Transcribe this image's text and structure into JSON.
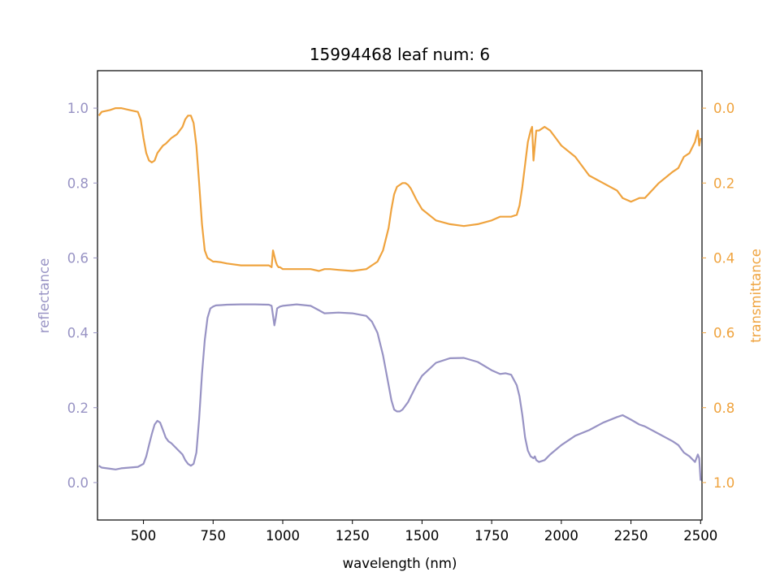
{
  "chart_data": {
    "type": "line",
    "title": "15994468 leaf num: 6",
    "xlabel": "wavelength (nm)",
    "ylabel": "reflectance",
    "y2label": "transmittance",
    "xlim": [
      335,
      2505
    ],
    "ylim": [
      -0.1,
      1.1
    ],
    "y2lim": [
      1.1,
      -0.1
    ],
    "y2_inverted": true,
    "grid": false,
    "x_ticks": [
      "500",
      "750",
      "1000",
      "1250",
      "1500",
      "1750",
      "2000",
      "2250",
      "2500"
    ],
    "y_ticks": [
      "0.0",
      "0.2",
      "0.4",
      "0.6",
      "0.8",
      "1.0"
    ],
    "y2_ticks": [
      "0.0",
      "0.2",
      "0.4",
      "0.6",
      "0.8",
      "1.0"
    ],
    "colors": {
      "reflectance": "#9893c4",
      "transmittance": "#efa33e",
      "axes": "#000000"
    },
    "series": [
      {
        "name": "reflectance",
        "axis": "left",
        "x": [
          340,
          350,
          380,
          400,
          420,
          450,
          480,
          500,
          510,
          520,
          530,
          540,
          550,
          560,
          570,
          580,
          590,
          600,
          620,
          640,
          650,
          660,
          670,
          680,
          690,
          700,
          710,
          720,
          730,
          740,
          750,
          760,
          780,
          800,
          850,
          900,
          950,
          960,
          970,
          975,
          980,
          990,
          1000,
          1050,
          1100,
          1130,
          1150,
          1200,
          1250,
          1300,
          1320,
          1340,
          1360,
          1380,
          1390,
          1400,
          1410,
          1420,
          1430,
          1440,
          1450,
          1460,
          1480,
          1500,
          1550,
          1600,
          1650,
          1700,
          1750,
          1780,
          1800,
          1820,
          1840,
          1850,
          1860,
          1870,
          1880,
          1890,
          1900,
          1905,
          1910,
          1920,
          1940,
          1960,
          2000,
          2050,
          2100,
          2150,
          2200,
          2220,
          2250,
          2280,
          2300,
          2350,
          2400,
          2420,
          2440,
          2460,
          2480,
          2490,
          2495,
          2500
        ],
        "y": [
          0.045,
          0.04,
          0.037,
          0.035,
          0.038,
          0.04,
          0.042,
          0.05,
          0.07,
          0.1,
          0.13,
          0.155,
          0.165,
          0.16,
          0.14,
          0.12,
          0.11,
          0.105,
          0.09,
          0.075,
          0.06,
          0.05,
          0.045,
          0.05,
          0.08,
          0.17,
          0.29,
          0.38,
          0.44,
          0.465,
          0.47,
          0.473,
          0.474,
          0.475,
          0.476,
          0.476,
          0.475,
          0.472,
          0.42,
          0.44,
          0.465,
          0.47,
          0.472,
          0.476,
          0.472,
          0.46,
          0.452,
          0.454,
          0.452,
          0.445,
          0.43,
          0.4,
          0.34,
          0.26,
          0.22,
          0.195,
          0.19,
          0.19,
          0.195,
          0.205,
          0.215,
          0.23,
          0.26,
          0.285,
          0.32,
          0.332,
          0.333,
          0.322,
          0.3,
          0.29,
          0.292,
          0.288,
          0.26,
          0.23,
          0.18,
          0.12,
          0.085,
          0.07,
          0.065,
          0.07,
          0.06,
          0.055,
          0.06,
          0.075,
          0.1,
          0.125,
          0.14,
          0.16,
          0.175,
          0.18,
          0.168,
          0.155,
          0.15,
          0.13,
          0.11,
          0.1,
          0.08,
          0.07,
          0.055,
          0.075,
          0.065,
          0.005
        ]
      },
      {
        "name": "transmittance",
        "axis": "right",
        "x": [
          340,
          350,
          380,
          400,
          420,
          450,
          480,
          490,
          500,
          510,
          520,
          530,
          540,
          550,
          560,
          570,
          580,
          600,
          620,
          640,
          650,
          660,
          670,
          680,
          690,
          700,
          710,
          720,
          730,
          740,
          750,
          760,
          780,
          800,
          850,
          900,
          950,
          960,
          965,
          970,
          975,
          980,
          985,
          990,
          1000,
          1050,
          1100,
          1130,
          1150,
          1170,
          1200,
          1250,
          1300,
          1320,
          1340,
          1360,
          1380,
          1390,
          1400,
          1410,
          1420,
          1430,
          1440,
          1450,
          1460,
          1480,
          1500,
          1550,
          1600,
          1650,
          1700,
          1750,
          1780,
          1800,
          1820,
          1840,
          1850,
          1860,
          1870,
          1880,
          1890,
          1895,
          1900,
          1905,
          1910,
          1920,
          1940,
          1960,
          1980,
          2000,
          2050,
          2100,
          2150,
          2200,
          2220,
          2250,
          2280,
          2300,
          2350,
          2400,
          2420,
          2440,
          2460,
          2480,
          2490,
          2495,
          2500
        ],
        "y": [
          0.02,
          0.01,
          0.005,
          0.0,
          0.0,
          0.005,
          0.01,
          0.03,
          0.08,
          0.12,
          0.14,
          0.145,
          0.14,
          0.12,
          0.11,
          0.1,
          0.095,
          0.08,
          0.07,
          0.05,
          0.03,
          0.02,
          0.02,
          0.04,
          0.1,
          0.2,
          0.31,
          0.38,
          0.4,
          0.405,
          0.41,
          0.41,
          0.412,
          0.415,
          0.42,
          0.42,
          0.42,
          0.425,
          0.38,
          0.395,
          0.41,
          0.42,
          0.425,
          0.425,
          0.43,
          0.43,
          0.43,
          0.435,
          0.43,
          0.43,
          0.432,
          0.435,
          0.43,
          0.42,
          0.41,
          0.38,
          0.32,
          0.27,
          0.23,
          0.21,
          0.205,
          0.2,
          0.2,
          0.205,
          0.215,
          0.245,
          0.27,
          0.3,
          0.31,
          0.315,
          0.31,
          0.3,
          0.29,
          0.29,
          0.29,
          0.285,
          0.26,
          0.21,
          0.15,
          0.09,
          0.06,
          0.05,
          0.14,
          0.1,
          0.06,
          0.06,
          0.05,
          0.06,
          0.08,
          0.1,
          0.13,
          0.18,
          0.2,
          0.22,
          0.24,
          0.25,
          0.24,
          0.24,
          0.2,
          0.17,
          0.16,
          0.13,
          0.12,
          0.09,
          0.06,
          0.1,
          0.08
        ]
      }
    ]
  }
}
